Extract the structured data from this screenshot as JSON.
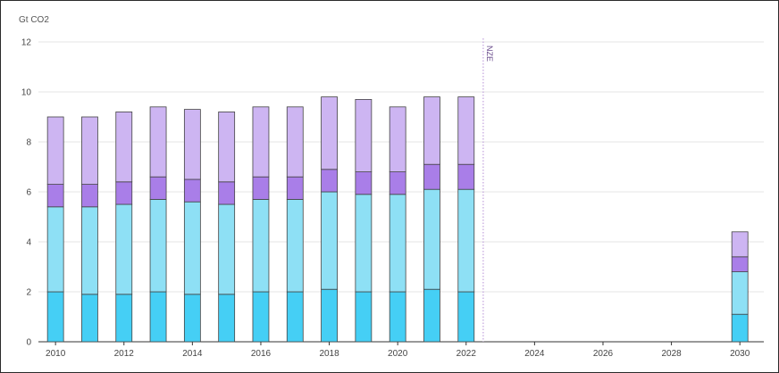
{
  "chart_data": {
    "type": "bar",
    "stacked": true,
    "y_unit_label": "Gt CO2",
    "ylim": [
      0,
      12
    ],
    "y_ticks": [
      0,
      2,
      4,
      6,
      8,
      10,
      12
    ],
    "x_ticks": [
      2010,
      2012,
      2014,
      2016,
      2018,
      2020,
      2022,
      2024,
      2026,
      2028,
      2030
    ],
    "xlim": [
      2009.5,
      2030.7
    ],
    "grid": true,
    "legend": "none",
    "categories": [
      2010,
      2011,
      2012,
      2013,
      2014,
      2015,
      2016,
      2017,
      2018,
      2019,
      2020,
      2021,
      2022,
      2030
    ],
    "series": [
      {
        "color": "#45cff5",
        "values": [
          2.0,
          1.9,
          1.9,
          2.0,
          1.9,
          1.9,
          2.0,
          2.0,
          2.1,
          2.0,
          2.0,
          2.1,
          2.0,
          1.1
        ]
      },
      {
        "color": "#8ee0f5",
        "values": [
          3.4,
          3.5,
          3.6,
          3.7,
          3.7,
          3.6,
          3.7,
          3.7,
          3.9,
          3.9,
          3.9,
          4.0,
          4.1,
          1.7
        ]
      },
      {
        "color": "#a97ee8",
        "values": [
          0.9,
          0.9,
          0.9,
          0.9,
          0.9,
          0.9,
          0.9,
          0.9,
          0.9,
          0.9,
          0.9,
          1.0,
          1.0,
          0.6
        ]
      },
      {
        "color": "#cdb5f2",
        "values": [
          2.7,
          2.7,
          2.8,
          2.8,
          2.8,
          2.8,
          2.8,
          2.8,
          2.9,
          2.9,
          2.6,
          2.7,
          2.7,
          1.0
        ]
      }
    ],
    "annotations": [
      {
        "text": "NZE",
        "x": 2022.5,
        "style": "dotted-vertical-line"
      }
    ]
  }
}
